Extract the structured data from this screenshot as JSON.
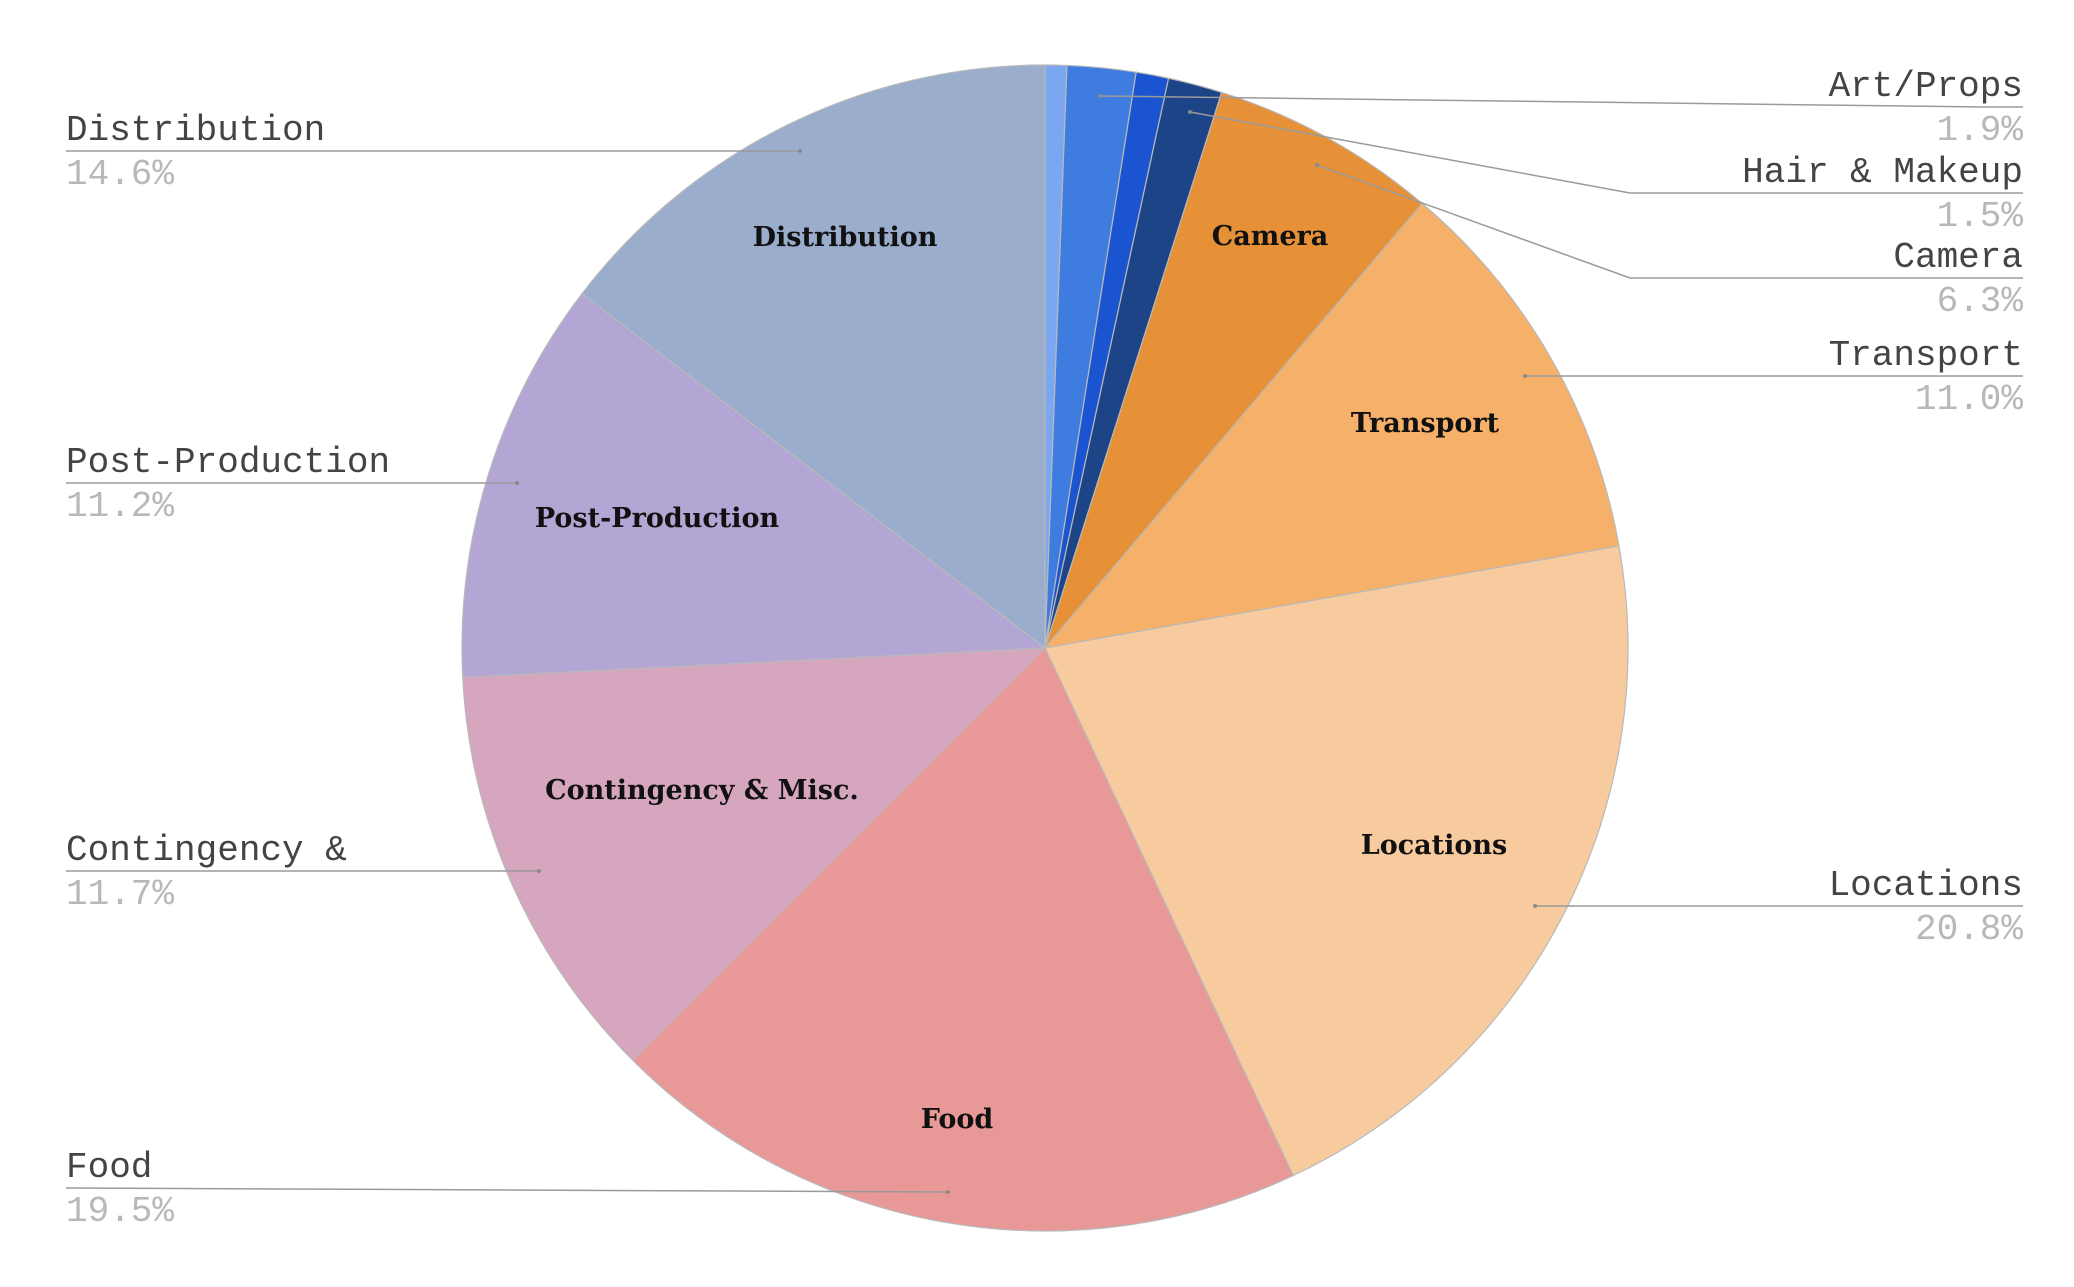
{
  "chart_data": {
    "type": "pie",
    "start_angle_deg": 0,
    "direction": "clockwise",
    "slices": [
      {
        "name": "",
        "value": 0.6,
        "color": "#7aa7ef",
        "inside_label": "",
        "outside_label": "",
        "outside_pct": ""
      },
      {
        "name": "Art/Props",
        "value": 1.9,
        "color": "#3f7ce0",
        "inside_label": "",
        "outside_label": "Art/Props",
        "outside_pct": "1.9%"
      },
      {
        "name": "",
        "value": 0.9,
        "color": "#1a54d0",
        "inside_label": "",
        "outside_label": "",
        "outside_pct": ""
      },
      {
        "name": "Hair & Makeup",
        "value": 1.5,
        "color": "#1e4488",
        "inside_label": "",
        "outside_label": "Hair & Makeup",
        "outside_pct": "1.5%"
      },
      {
        "name": "Camera",
        "value": 6.3,
        "color": "#e69137",
        "inside_label": "Camera",
        "outside_label": "Camera",
        "outside_pct": "6.3%"
      },
      {
        "name": "Transport",
        "value": 11.0,
        "color": "#f5b06a",
        "inside_label": "Transport",
        "outside_label": "Transport",
        "outside_pct": "11.0%"
      },
      {
        "name": "Locations",
        "value": 20.8,
        "color": "#f8cb9e",
        "inside_label": "Locations",
        "outside_label": "Locations",
        "outside_pct": "20.8%"
      },
      {
        "name": "Food",
        "value": 19.5,
        "color": "#e99898",
        "inside_label": "Food",
        "outside_label": "Food",
        "outside_pct": "19.5%"
      },
      {
        "name": "Contingency & Misc.",
        "value": 11.7,
        "color": "#d6a5be",
        "inside_label": "Contingency & Misc.",
        "outside_label": "Contingency &",
        "outside_pct": "11.7%"
      },
      {
        "name": "Post-Production",
        "value": 11.2,
        "color": "#b3a6d4",
        "inside_label": "Post-Production",
        "outside_label": "Post-Production",
        "outside_pct": "11.2%"
      },
      {
        "name": "Distribution",
        "value": 14.6,
        "color": "#9aadcd",
        "inside_label": "Distribution",
        "outside_label": "Distribution",
        "outside_pct": "14.6%"
      }
    ]
  }
}
